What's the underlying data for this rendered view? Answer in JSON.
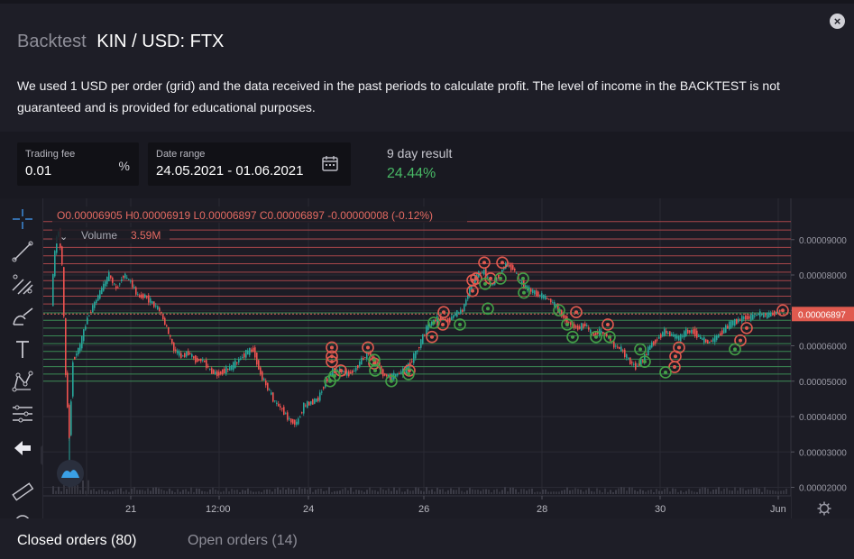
{
  "header": {
    "prefix": "Backtest",
    "pair": "KIN / USD: FTX"
  },
  "description": "We used 1 USD per order (grid) and the data received in the past periods to calculate profit. The level of income in the BACKTEST is not guaranteed and is provided for educational purposes.",
  "params": {
    "fee": {
      "label": "Trading fee",
      "value": "0.01",
      "unit": "%"
    },
    "range": {
      "label": "Date range",
      "value": "24.05.2021 - 01.06.2021"
    },
    "result": {
      "label": "9 day result",
      "value": "24.44%"
    }
  },
  "chart": {
    "ohlc": {
      "o": "O0.00006905",
      "h": "H0.00006919",
      "l": "L0.00006897",
      "c": "C0.00006897",
      "change": "-0.00000008 (-0.12%)"
    },
    "volume": {
      "label": "Volume",
      "value": "3.59M"
    },
    "price_badge": "0.00006897",
    "y_ticks": [
      "0.00009000",
      "0.00008000",
      "0.00007000",
      "0.00006000",
      "0.00005000",
      "0.00004000",
      "0.00003000",
      "0.00002000"
    ],
    "x_ticks": [
      "21",
      "12:00",
      "24",
      "26",
      "28",
      "30",
      "Jun"
    ],
    "colors": {
      "up": "#26a69a",
      "down": "#ef5350",
      "sell": "#e05a4f",
      "buy": "#43a047",
      "grid_sell": "#a8464a",
      "grid_buy": "#3a8a55"
    }
  },
  "tabs": {
    "closed": "Closed orders (80)",
    "open": "Open orders (14)"
  },
  "icons": [
    "close-icon",
    "calendar-icon",
    "crosshair-icon",
    "trend-line-icon",
    "fib-icon",
    "brush-icon",
    "text-icon",
    "pattern-icon",
    "measure-icon",
    "back-arrow-icon",
    "ruler-icon",
    "settings-icon",
    "logo-icon"
  ]
}
